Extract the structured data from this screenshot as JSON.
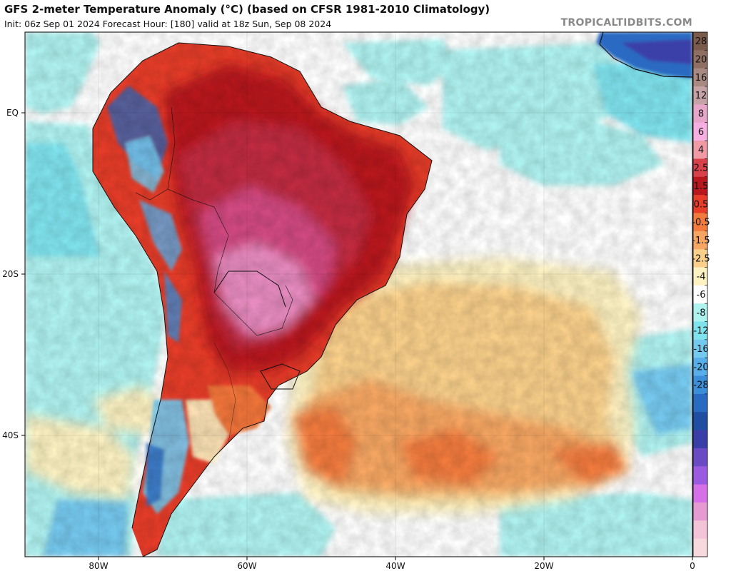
{
  "header": {
    "title": "GFS 2-meter Temperature Anomaly (°C) (based on CFSR 1981-2010 Climatology)",
    "subtitle": "Init: 06z Sep 01 2024   Forecast Hour: [180]   valid at 18z Sun, Sep 08 2024",
    "credit": "TROPICALTIDBITS.COM"
  },
  "map": {
    "lat_labels": [
      "EQ",
      "20S",
      "40S"
    ],
    "lon_labels": [
      "80W",
      "60W",
      "40W",
      "20W",
      "0"
    ]
  },
  "colorbar": {
    "labels": [
      "28",
      "20",
      "16",
      "12",
      "8",
      "6",
      "4",
      "2.5",
      "1.5",
      "0.5",
      "-0.5",
      "-1.5",
      "-2.5",
      "-4",
      "-6",
      "-8",
      "-12",
      "-16",
      "-20",
      "-28"
    ],
    "colors": [
      "#7a5a4a",
      "#8f6f62",
      "#a98a82",
      "#c5a2a6",
      "#e7a6c9",
      "#f7aee0",
      "#f09aa6",
      "#d8404a",
      "#b8171d",
      "#e63c28",
      "#f27a3c",
      "#f6a662",
      "#f9cf8a",
      "#fdf2c2",
      "#ffffff",
      "#aff3f1",
      "#7fe3ee",
      "#74c9ef",
      "#58aee9",
      "#3d8ed9",
      "#2a6bc2",
      "#1f4ea3",
      "#3a3fa8",
      "#6a4bc4",
      "#9b5be0",
      "#d670e6",
      "#e59ad2",
      "#f3c3d8",
      "#f7d8dd"
    ]
  },
  "colors": {
    "ocean_neutral": "#ffffff",
    "hot_core": "#d24a82",
    "very_hot": "#b8171d",
    "warm": "#e63c28",
    "mild_warm": "#f6a662",
    "slight_warm": "#fdf2c2",
    "slight_cool": "#aff3f1",
    "cool": "#74c9ef",
    "cold": "#2a6bc2"
  }
}
